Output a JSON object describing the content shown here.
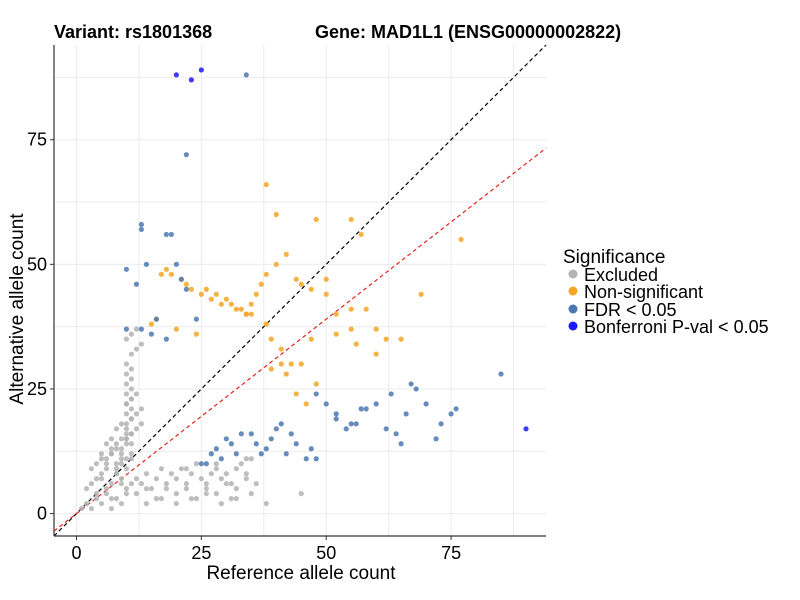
{
  "chart_data": {
    "type": "scatter",
    "title_left": "Variant: rs1801368",
    "title_right": "Gene: MAD1L1 (ENSG00000002822)",
    "xlabel": "Reference allele count",
    "ylabel": "Alternative allele count",
    "xlim": [
      -4.5,
      94
    ],
    "ylim": [
      -4.5,
      94
    ],
    "xticks": [
      0,
      25,
      50,
      75
    ],
    "yticks": [
      0,
      25,
      50,
      75
    ],
    "grid": true,
    "legend": {
      "title": "Significance",
      "position": "right",
      "entries": [
        {
          "label": "Excluded",
          "color": "#b3b3b3"
        },
        {
          "label": "Non-significant",
          "color": "#f5a623"
        },
        {
          "label": "FDR < 0.05",
          "color": "#4a78b0"
        },
        {
          "label": "Bonferroni P-val < 0.05",
          "color": "#1a1aff"
        }
      ]
    },
    "reference_lines": [
      {
        "name": "identity",
        "slope": 1,
        "intercept": 0,
        "color": "#000000",
        "dash": true
      },
      {
        "name": "expected-ratio",
        "slope": 0.78,
        "intercept": 0,
        "color": "#e8221c",
        "dash": true
      }
    ],
    "series": [
      {
        "name": "Excluded",
        "color": "#b3b3b3",
        "x": [
          1,
          2,
          3,
          4,
          5,
          6,
          7,
          8,
          9,
          2,
          3,
          4,
          5,
          6,
          7,
          8,
          9,
          10,
          3,
          4,
          5,
          6,
          7,
          8,
          9,
          10,
          4,
          5,
          6,
          7,
          8,
          9,
          10,
          11,
          5,
          6,
          7,
          8,
          9,
          10,
          11,
          6,
          7,
          8,
          9,
          10,
          11,
          7,
          8,
          9,
          10,
          11,
          8,
          9,
          10,
          11,
          9,
          10,
          11,
          10,
          11,
          10,
          11,
          10,
          11,
          10,
          11,
          10,
          11,
          12,
          13,
          14,
          15,
          16,
          17,
          18,
          19,
          20,
          21,
          22,
          23,
          24,
          25,
          26,
          27,
          28,
          29,
          30,
          31,
          32,
          33,
          34,
          35,
          12,
          14,
          16,
          18,
          20,
          22,
          24,
          26,
          28,
          30,
          32,
          34,
          36,
          14,
          17,
          20,
          23,
          26,
          29,
          32,
          35,
          22,
          28,
          34,
          10,
          11,
          12,
          13,
          10,
          11,
          12,
          10,
          11,
          12,
          13,
          10,
          11,
          12,
          10,
          11,
          12,
          13,
          38,
          45,
          31
        ],
        "y": [
          1,
          2,
          1,
          3,
          2,
          4,
          1,
          3,
          2,
          5,
          6,
          4,
          7,
          5,
          3,
          8,
          6,
          4,
          9,
          7,
          8,
          10,
          6,
          9,
          7,
          5,
          10,
          11,
          9,
          12,
          8,
          10,
          11,
          6,
          12,
          11,
          13,
          10,
          12,
          9,
          11,
          14,
          12,
          13,
          11,
          14,
          12,
          15,
          14,
          13,
          15,
          16,
          17,
          15,
          16,
          14,
          18,
          17,
          19,
          20,
          21,
          22,
          23,
          24,
          25,
          26,
          27,
          28,
          29,
          7,
          6,
          8,
          5,
          7,
          9,
          6,
          8,
          7,
          9,
          5,
          8,
          10,
          7,
          6,
          8,
          9,
          7,
          8,
          6,
          9,
          10,
          8,
          11,
          4,
          5,
          3,
          5,
          4,
          6,
          3,
          5,
          4,
          6,
          5,
          7,
          6,
          2,
          3,
          2,
          3,
          4,
          2,
          3,
          4,
          9,
          10,
          11,
          30,
          32,
          33,
          34,
          35,
          36,
          37,
          18,
          19,
          20,
          21,
          22,
          23,
          24,
          15,
          16,
          17,
          18,
          2,
          4,
          3
        ]
      },
      {
        "name": "Non-significant",
        "color": "#f5a623",
        "x": [
          38,
          40,
          48,
          55,
          57,
          77,
          44,
          47,
          50,
          52,
          58,
          62,
          65,
          69,
          55,
          60,
          47,
          38,
          39,
          41,
          43,
          45,
          34,
          35,
          36,
          37,
          38,
          40,
          42,
          45,
          50,
          55,
          52,
          56,
          60,
          44,
          46,
          48,
          42,
          41,
          39,
          17,
          21,
          22,
          26,
          28,
          30,
          31,
          33,
          35,
          18,
          19,
          23,
          25,
          27,
          29,
          32,
          34,
          15,
          16,
          20,
          24
        ],
        "y": [
          66,
          60,
          59,
          59,
          56,
          55,
          47,
          45,
          47,
          40,
          41,
          35,
          35,
          44,
          37,
          37,
          35,
          38,
          35,
          33,
          30,
          30,
          40,
          42,
          44,
          46,
          48,
          50,
          52,
          46,
          44,
          41,
          36,
          34,
          32,
          24,
          22,
          26,
          28,
          30,
          29,
          48,
          47,
          46,
          45,
          44,
          43,
          42,
          41,
          40,
          49,
          48,
          45,
          44,
          43,
          42,
          41,
          40,
          38,
          39,
          37,
          36
        ]
      },
      {
        "name": "FDR < 0.05",
        "color": "#4a78b0",
        "x": [
          34,
          22,
          13,
          13,
          10,
          14,
          12,
          18,
          19,
          20,
          21,
          22,
          24,
          10,
          13,
          15,
          16,
          18,
          48,
          52,
          55,
          57,
          60,
          63,
          67,
          70,
          72,
          73,
          75,
          76,
          85,
          50,
          52,
          54,
          56,
          58,
          62,
          64,
          65,
          66,
          68,
          40,
          42,
          44,
          46,
          47,
          48,
          35,
          36,
          38,
          30,
          31,
          32,
          33,
          28,
          29,
          26,
          27,
          25,
          37,
          39,
          41,
          43
        ],
        "y": [
          88,
          72,
          58,
          57,
          49,
          50,
          46,
          56,
          56,
          50,
          47,
          45,
          39,
          37,
          37,
          36,
          39,
          35,
          24,
          20,
          18,
          21,
          22,
          24,
          26,
          22,
          15,
          18,
          20,
          21,
          28,
          22,
          19,
          17,
          18,
          21,
          17,
          16,
          14,
          20,
          25,
          17,
          12,
          14,
          11,
          13,
          11,
          16,
          14,
          13,
          15,
          14,
          12,
          16,
          13,
          11,
          10,
          12,
          10,
          12,
          15,
          18,
          16
        ]
      },
      {
        "name": "Bonferroni P-val < 0.05",
        "color": "#1a1aff",
        "x": [
          20,
          23,
          25,
          90
        ],
        "y": [
          88,
          87,
          89,
          17
        ]
      }
    ]
  }
}
